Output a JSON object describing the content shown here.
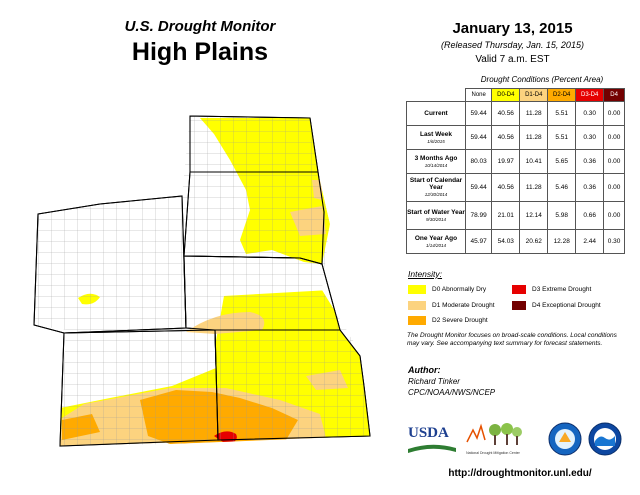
{
  "header": {
    "subtitle": "U.S. Drought Monitor",
    "title": "High Plains",
    "date": "January 13, 2015",
    "released": "(Released Thursday, Jan. 15, 2015)",
    "valid": "Valid  7 a.m. EST"
  },
  "table": {
    "title": "Drought Conditions (Percent Area)",
    "columns": [
      "None",
      "D0-D4",
      "D1-D4",
      "D2-D4",
      "D3-D4",
      "D4"
    ],
    "column_colors": [
      "#ffffff",
      "#ffff00",
      "#fcd37f",
      "#ffaa00",
      "#e60000",
      "#730000"
    ],
    "rows": [
      {
        "label": "Current",
        "sub": "",
        "values": [
          "59.44",
          "40.56",
          "11.28",
          "5.51",
          "0.30",
          "0.00"
        ]
      },
      {
        "label": "Last Week",
        "sub": "1/6/2015",
        "values": [
          "59.44",
          "40.56",
          "11.28",
          "5.51",
          "0.30",
          "0.00"
        ]
      },
      {
        "label": "3 Months Ago",
        "sub": "10/14/2014",
        "values": [
          "80.03",
          "19.97",
          "10.41",
          "5.65",
          "0.36",
          "0.00"
        ]
      },
      {
        "label": "Start of Calendar Year",
        "sub": "12/30/2014",
        "values": [
          "59.44",
          "40.56",
          "11.28",
          "5.46",
          "0.36",
          "0.00"
        ]
      },
      {
        "label": "Start of Water Year",
        "sub": "9/30/2014",
        "values": [
          "78.99",
          "21.01",
          "12.14",
          "5.98",
          "0.66",
          "0.00"
        ]
      },
      {
        "label": "One Year Ago",
        "sub": "1/14/2014",
        "values": [
          "45.97",
          "54.03",
          "20.62",
          "12.28",
          "2.44",
          "0.30"
        ]
      }
    ]
  },
  "legend": {
    "title": "Intensity:",
    "items": [
      {
        "label": "D0 Abnormally Dry",
        "color": "#ffff00"
      },
      {
        "label": "D1 Moderate Drought",
        "color": "#fcd37f"
      },
      {
        "label": "D2 Severe Drought",
        "color": "#ffaa00"
      },
      {
        "label": "D3 Extreme Drought",
        "color": "#e60000"
      },
      {
        "label": "D4 Exceptional Drought",
        "color": "#730000"
      }
    ]
  },
  "note": "The Drought Monitor focuses on broad-scale conditions. Local conditions may vary. See accompanying text summary for forecast statements.",
  "author": {
    "heading": "Author:",
    "name": "Richard Tinker",
    "org": "CPC/NOAA/NWS/NCEP"
  },
  "logos": {
    "usda": "USDA",
    "ndmc": "National Drought Mitigation Center"
  },
  "url": "http://droughtmonitor.unl.edu/"
}
